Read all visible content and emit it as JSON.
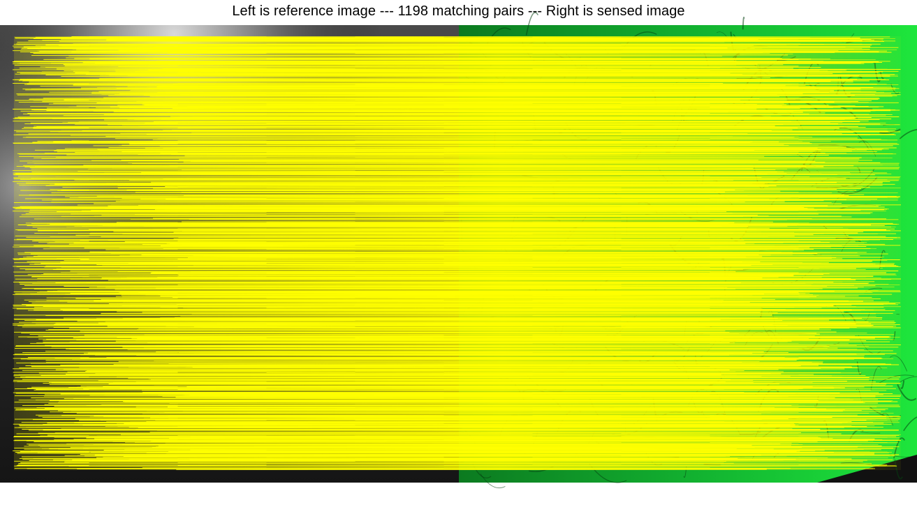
{
  "figure": {
    "title": "Left is reference image --- 1198 matching pairs --- Right is sensed image",
    "match_count": 1198,
    "left_panel": "reference image",
    "right_panel": "sensed image"
  },
  "colors": {
    "background": "#ffffff",
    "title_text": "#000000",
    "match_line": "#ffff00",
    "reference_dark": "#1a1a1a",
    "reference_light": "#9a9a9a",
    "sensed_bright": "#1ee63c",
    "sensed_dark": "#063f10"
  }
}
